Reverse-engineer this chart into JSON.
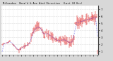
{
  "title": "Milwaukee  Norm'd & Ave Wind Direction  (Last 24 Hrs)",
  "bg_color": "#d8d8d8",
  "plot_bg": "#ffffff",
  "grid_color": "#bbbbbb",
  "red_color": "#dd0000",
  "blue_color": "#0000dd",
  "ylim": [
    0.5,
    7.5
  ],
  "yticks_right": [
    1,
    2,
    3,
    4,
    5,
    6,
    7
  ],
  "n_points": 144,
  "seed": 42,
  "figsize": [
    1.6,
    0.87
  ],
  "dpi": 100
}
